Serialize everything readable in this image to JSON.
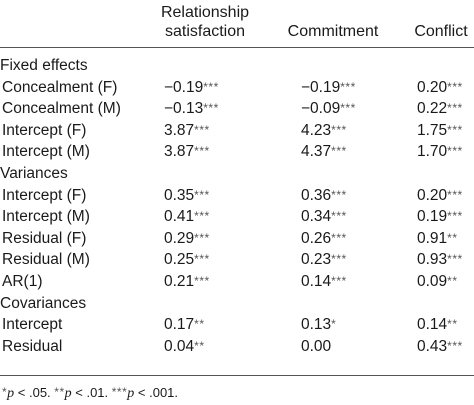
{
  "table": {
    "headers": {
      "relationship_line1": "Relationship",
      "relationship_line2": "satisfaction",
      "commitment": "Commitment",
      "conflict": "Conflict"
    },
    "rows": [
      {
        "kind": "section",
        "label": "Fixed effects"
      },
      {
        "kind": "data",
        "label": "Concealment (F)",
        "rel": "−0.19",
        "rel_stars": "***",
        "com": "−0.19",
        "com_stars": "***",
        "con": "0.20",
        "con_stars": "***"
      },
      {
        "kind": "data",
        "label": "Concealment (M)",
        "rel": "−0.13",
        "rel_stars": "***",
        "com": "−0.09",
        "com_stars": "***",
        "con": "0.22",
        "con_stars": "***"
      },
      {
        "kind": "data",
        "label": "Intercept (F)",
        "rel": "3.87",
        "rel_stars": "***",
        "com": "4.23",
        "com_stars": "***",
        "con": "1.75",
        "con_stars": "***"
      },
      {
        "kind": "data",
        "label": "Intercept (M)",
        "rel": "3.87",
        "rel_stars": "***",
        "com": "4.37",
        "com_stars": "***",
        "con": "1.70",
        "con_stars": "***"
      },
      {
        "kind": "section",
        "label": "Variances"
      },
      {
        "kind": "data",
        "label": "Intercept (F)",
        "rel": "0.35",
        "rel_stars": "***",
        "com": "0.36",
        "com_stars": "***",
        "con": "0.20",
        "con_stars": "***"
      },
      {
        "kind": "data",
        "label": "Intercept (M)",
        "rel": "0.41",
        "rel_stars": "***",
        "com": "0.34",
        "com_stars": "***",
        "con": "0.19",
        "con_stars": "***"
      },
      {
        "kind": "data",
        "label": "Residual (F)",
        "rel": "0.29",
        "rel_stars": "***",
        "com": "0.26",
        "com_stars": "***",
        "con": "0.91",
        "con_stars": "**"
      },
      {
        "kind": "data",
        "label": "Residual (M)",
        "rel": "0.25",
        "rel_stars": "***",
        "com": "0.23",
        "com_stars": "***",
        "con": "0.93",
        "con_stars": "***"
      },
      {
        "kind": "data",
        "label": "AR(1)",
        "rel": "0.21",
        "rel_stars": "***",
        "com": "0.14",
        "com_stars": "***",
        "con": "0.09",
        "con_stars": "**"
      },
      {
        "kind": "section",
        "label": "Covariances"
      },
      {
        "kind": "data",
        "label": "Intercept",
        "rel": "0.17",
        "rel_stars": "**",
        "com": "0.13",
        "com_stars": "*",
        "con": "0.14",
        "con_stars": "**"
      },
      {
        "kind": "data",
        "label": "Residual",
        "rel": "0.04",
        "rel_stars": "**",
        "com": "0.00",
        "com_stars": "",
        "con": "0.43",
        "con_stars": "***"
      }
    ],
    "footnote": {
      "s1": "*",
      "p1": "p",
      "t1": " < .05. ",
      "s2": "**",
      "p2": "p",
      "t2": " < .01. ",
      "s3": "***",
      "p3": "p",
      "t3": " < .001."
    }
  }
}
